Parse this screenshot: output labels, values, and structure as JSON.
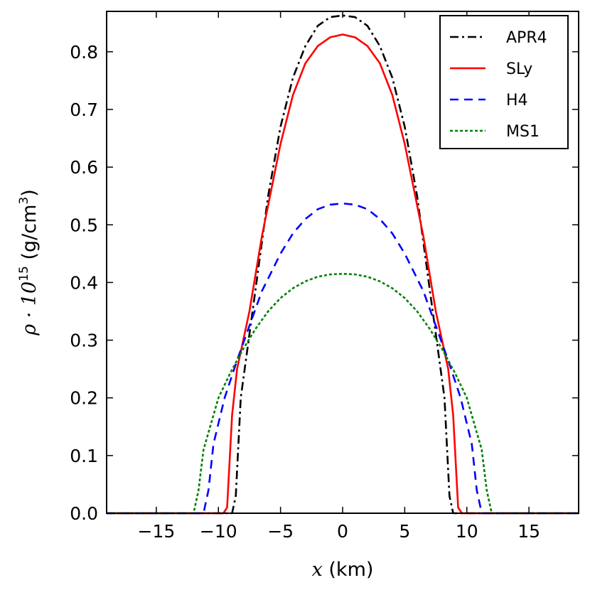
{
  "chart_data": {
    "type": "line",
    "title": "",
    "xlabel_math": "x",
    "xlabel_text": " (km)",
    "ylabel_math": "ρ · 10",
    "ylabel_exp": "15",
    "ylabel_text": " (g/cm",
    "ylabel_unit_exp": "3",
    "ylabel_close": ")",
    "xlim": [
      -19,
      19
    ],
    "ylim": [
      0,
      0.87
    ],
    "xticks": [
      -15,
      -10,
      -5,
      0,
      5,
      10,
      15
    ],
    "xtick_labels": [
      "−15",
      "−10",
      "−5",
      "0",
      "5",
      "10",
      "15"
    ],
    "yticks": [
      0.0,
      0.1,
      0.2,
      0.3,
      0.4,
      0.5,
      0.6,
      0.7,
      0.8
    ],
    "ytick_labels": [
      "0.0",
      "0.1",
      "0.2",
      "0.3",
      "0.4",
      "0.5",
      "0.6",
      "0.7",
      "0.8"
    ],
    "grid": false,
    "legend_position": "top-right",
    "series": [
      {
        "name": "APR4",
        "color": "#000000",
        "dash": "dashdot",
        "x": [
          -19,
          -8.9,
          -8.6,
          -8.2,
          -7,
          -6,
          -5,
          -4,
          -3,
          -2,
          -1,
          0,
          1,
          2,
          3,
          4,
          5,
          6,
          7,
          8.2,
          8.6,
          8.9,
          19
        ],
        "y": [
          0,
          0,
          0.03,
          0.2,
          0.39,
          0.55,
          0.67,
          0.755,
          0.81,
          0.845,
          0.86,
          0.863,
          0.86,
          0.845,
          0.81,
          0.755,
          0.67,
          0.55,
          0.39,
          0.2,
          0.03,
          0,
          0
        ]
      },
      {
        "name": "SLy",
        "color": "#ff0000",
        "dash": "solid",
        "x": [
          -19,
          -9.6,
          -9.3,
          -8.9,
          -8.5,
          -7.5,
          -6.5,
          -5,
          -4,
          -3,
          -2,
          -1,
          0,
          1,
          2,
          3,
          4,
          5,
          6.5,
          7.5,
          8.5,
          8.9,
          9.3,
          9.6,
          19
        ],
        "y": [
          0,
          0,
          0.01,
          0.17,
          0.25,
          0.35,
          0.48,
          0.64,
          0.725,
          0.78,
          0.81,
          0.825,
          0.83,
          0.825,
          0.81,
          0.78,
          0.725,
          0.64,
          0.48,
          0.35,
          0.25,
          0.17,
          0.01,
          0,
          0
        ]
      },
      {
        "name": "H4",
        "color": "#0000ff",
        "dash": "dashed",
        "x": [
          -19,
          -11.2,
          -10.8,
          -10.4,
          -9.5,
          -8.5,
          -7.5,
          -6.5,
          -5,
          -4,
          -3,
          -2,
          -1,
          0,
          1,
          2,
          3,
          4,
          5,
          6.5,
          7.5,
          8.5,
          9.5,
          10.4,
          10.8,
          11.2,
          19
        ],
        "y": [
          0,
          0,
          0.04,
          0.12,
          0.2,
          0.265,
          0.325,
          0.385,
          0.45,
          0.485,
          0.51,
          0.527,
          0.535,
          0.537,
          0.535,
          0.527,
          0.51,
          0.485,
          0.45,
          0.385,
          0.325,
          0.265,
          0.2,
          0.12,
          0.04,
          0,
          0
        ]
      },
      {
        "name": "MS1",
        "color": "#008000",
        "dash": "dotted",
        "x": [
          -19,
          -12,
          -11.6,
          -11.2,
          -10,
          -9,
          -8,
          -7,
          -6,
          -5,
          -4,
          -3,
          -2,
          -1,
          0,
          1,
          2,
          3,
          4,
          5,
          6,
          7,
          8,
          9,
          10,
          11.2,
          11.6,
          12,
          19
        ],
        "y": [
          0,
          0,
          0.04,
          0.11,
          0.2,
          0.245,
          0.285,
          0.32,
          0.35,
          0.373,
          0.39,
          0.402,
          0.41,
          0.414,
          0.415,
          0.414,
          0.41,
          0.402,
          0.39,
          0.373,
          0.35,
          0.32,
          0.285,
          0.245,
          0.2,
          0.11,
          0.04,
          0,
          0
        ]
      }
    ]
  }
}
